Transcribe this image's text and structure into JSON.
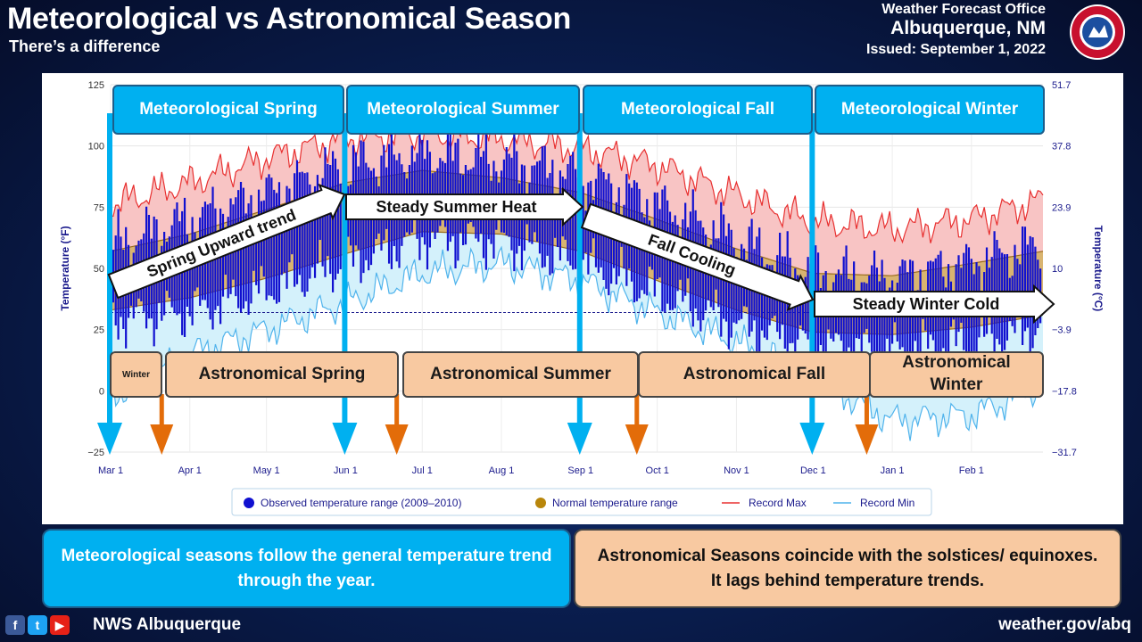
{
  "header": {
    "title": "Meteorological vs Astronomical Season",
    "subtitle": "There’s a difference",
    "office_line1": "Weather Forecast Office",
    "office_line2": "Albuquerque, NM",
    "issued": "Issued: September 1, 2022",
    "logo_text": "NATIONAL WEATHER SERVICE"
  },
  "meteorological_seasons": [
    "Meteorological Spring",
    "Meteorological Summer",
    "Meteorological Fall",
    "Meteorological Winter"
  ],
  "astronomical_seasons": [
    "Winter",
    "Astronomical Spring",
    "Astronomical Summer",
    "Astronomical Fall",
    "Astronomical Winter"
  ],
  "trend_arrows": [
    "Spring Upward trend",
    "Steady Summer Heat",
    "Fall Cooling",
    "Steady Winter Cold"
  ],
  "chart_data": {
    "type": "bar",
    "title": "",
    "ylabel_left": "Temperature (°F)",
    "ylabel_right": "Temperature (°C)",
    "ylim": [
      -25,
      125
    ],
    "yticks_left": [
      "125",
      "100",
      "75",
      "50",
      "25",
      "0",
      "−25"
    ],
    "yticks_right": [
      "51.7",
      "37.8",
      "23.9",
      "10",
      "−3.9",
      "−17.8",
      "−31.7"
    ],
    "x_ticks": [
      {
        "label": "Mar 1",
        "day": 0
      },
      {
        "label": "Apr 1",
        "day": 31
      },
      {
        "label": "May 1",
        "day": 61
      },
      {
        "label": "Jun 1",
        "day": 92
      },
      {
        "label": "Jul 1",
        "day": 122
      },
      {
        "label": "Aug 1",
        "day": 153
      },
      {
        "label": "Sep 1",
        "day": 184
      },
      {
        "label": "Oct 1",
        "day": 214
      },
      {
        "label": "Nov 1",
        "day": 245
      },
      {
        "label": "Dec 1",
        "day": 275
      },
      {
        "label": "Jan 1",
        "day": 306
      },
      {
        "label": "Feb 1",
        "day": 337
      }
    ],
    "x_range_days": [
      0,
      365
    ],
    "grid": true,
    "legend_position": "bottom",
    "legend": [
      {
        "label": "Observed temperature range (2009–2010)",
        "color": "#1010d0"
      },
      {
        "label": "Normal temperature range",
        "color": "#b8860b"
      },
      {
        "label": "Record Max",
        "color": "#e83030"
      },
      {
        "label": "Record Min",
        "color": "#4fb3ec"
      }
    ],
    "reference_line_f": 32,
    "record_max": {
      "days": [
        0,
        31,
        61,
        92,
        122,
        153,
        184,
        214,
        245,
        275,
        306,
        337,
        365
      ],
      "values": [
        76,
        85,
        95,
        103,
        105,
        103,
        99,
        92,
        80,
        69,
        66,
        70,
        78
      ]
    },
    "record_min": {
      "days": [
        0,
        31,
        61,
        92,
        122,
        153,
        184,
        214,
        245,
        275,
        306,
        337,
        365
      ],
      "values": [
        -3,
        15,
        25,
        36,
        48,
        52,
        45,
        32,
        20,
        5,
        -12,
        -10,
        2
      ]
    },
    "normal_high": {
      "days": [
        0,
        31,
        61,
        92,
        122,
        153,
        184,
        214,
        245,
        275,
        306,
        337,
        365
      ],
      "values": [
        57,
        64,
        74,
        85,
        90,
        87,
        81,
        70,
        58,
        48,
        47,
        52,
        57
      ]
    },
    "normal_low": {
      "days": [
        0,
        31,
        61,
        92,
        122,
        153,
        184,
        214,
        245,
        275,
        306,
        337,
        365
      ],
      "values": [
        33,
        38,
        46,
        56,
        65,
        64,
        57,
        45,
        33,
        24,
        23,
        26,
        31
      ]
    },
    "observed_high": {
      "days": [
        0,
        31,
        61,
        92,
        122,
        153,
        184,
        214,
        245,
        275,
        306,
        337,
        365
      ],
      "values": [
        55,
        66,
        76,
        88,
        93,
        90,
        84,
        72,
        58,
        44,
        42,
        48,
        56
      ]
    },
    "observed_low": {
      "days": [
        0,
        31,
        61,
        92,
        122,
        153,
        184,
        214,
        245,
        275,
        306,
        337,
        365
      ],
      "values": [
        33,
        36,
        45,
        56,
        66,
        65,
        56,
        44,
        31,
        22,
        20,
        24,
        30
      ]
    },
    "meteorological_boundaries_days": [
      0,
      92,
      184,
      275
    ],
    "astronomical_boundaries_days": [
      20,
      112,
      206,
      296
    ]
  },
  "bottom": {
    "left_text": "Meteorological seasons follow the general temperature trend through the year.",
    "right_text": "Astronomical Seasons coincide with the solstices/ equinoxes. It lags behind temperature trends."
  },
  "footer": {
    "name": "NWS Albuquerque",
    "url": "weather.gov/abq",
    "icons": [
      "facebook-icon",
      "twitter-icon",
      "youtube-icon"
    ],
    "icon_glyphs": [
      "f",
      "t",
      "▶"
    ]
  }
}
